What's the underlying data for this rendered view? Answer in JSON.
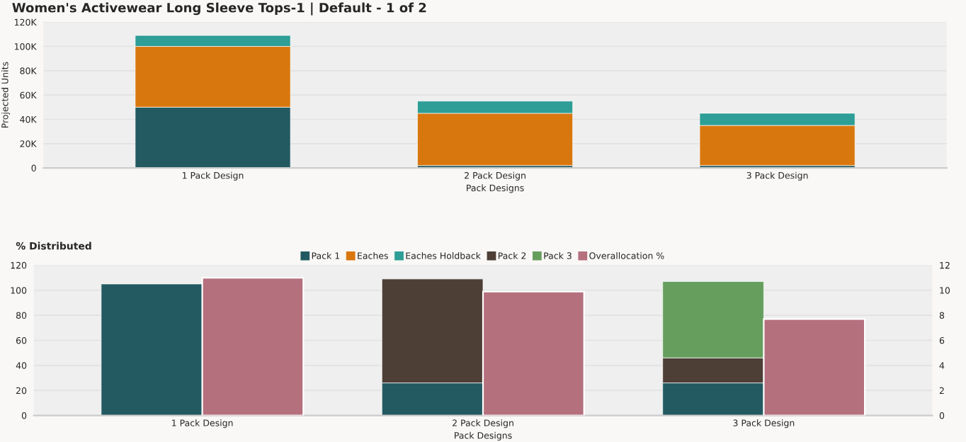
{
  "chart_data": [
    {
      "type": "bar",
      "title": "Women's Activewear Long Sleeve Tops-1 | Default - 1 of 2",
      "xlabel": "Pack Designs",
      "ylabel": "Projected Units",
      "stacked": true,
      "grid": "y",
      "legend": false,
      "categories": [
        "1 Pack Design",
        "2 Pack Design",
        "3 Pack Design"
      ],
      "series": [
        {
          "color": "#235a61",
          "values": [
            50000,
            2000,
            2000
          ]
        },
        {
          "color": "#d9770f",
          "values": [
            50000,
            43000,
            33000
          ]
        },
        {
          "color": "#2e9e96",
          "values": [
            9000,
            10000,
            10000
          ]
        }
      ],
      "ylim": [
        0,
        120000
      ],
      "yticks": [
        {
          "value": 0,
          "label": "0"
        },
        {
          "value": 20000,
          "label": "20K"
        },
        {
          "value": 40000,
          "label": "40K"
        },
        {
          "value": 60000,
          "label": "60K"
        },
        {
          "value": 80000,
          "label": "80K"
        },
        {
          "value": 100000,
          "label": "100K"
        },
        {
          "value": 120000,
          "label": "120K"
        }
      ]
    },
    {
      "type": "bar",
      "title": "% Distributed",
      "xlabel": "Pack Designs",
      "stacked": true,
      "grid": "y",
      "legend": "top",
      "categories": [
        "1 Pack Design",
        "2 Pack Design",
        "3 Pack Design"
      ],
      "series": [
        {
          "name": "Pack 1",
          "color": "#235a61",
          "values": [
            105,
            26,
            26
          ]
        },
        {
          "name": "Eaches",
          "color": "#d9770f",
          "values": [
            null,
            null,
            null
          ]
        },
        {
          "name": "Eaches Holdback",
          "color": "#2e9e96",
          "values": [
            null,
            null,
            null
          ]
        },
        {
          "name": "Pack 2",
          "color": "#4d3f36",
          "values": [
            null,
            83,
            20
          ]
        },
        {
          "name": "Pack 3",
          "color": "#669e5e",
          "values": [
            null,
            null,
            61
          ]
        },
        {
          "name": "Overallocation %",
          "color": "#b5707e",
          "axis": "y2",
          "values": [
            11.0,
            9.9,
            7.7
          ]
        }
      ],
      "ylim": [
        0,
        120
      ],
      "yticks": [
        0,
        20,
        40,
        60,
        80,
        100,
        120
      ],
      "y2lim": [
        0,
        12
      ],
      "y2ticks": [
        0,
        2,
        4,
        6,
        8,
        10,
        12
      ]
    }
  ]
}
